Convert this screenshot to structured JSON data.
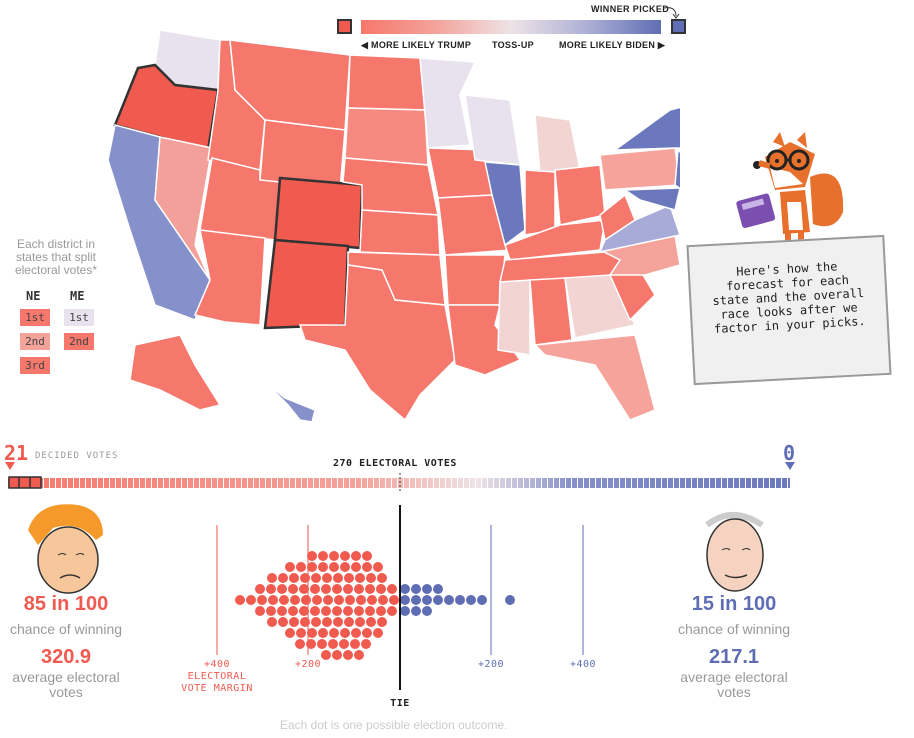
{
  "legend": {
    "trump_label": "◀ MORE LIKELY TRUMP",
    "tossup_label": "TOSS-UP",
    "biden_label": "MORE LIKELY BIDEN ▶",
    "winner_picked": "WINNER PICKED",
    "colors": {
      "trump": "#f05a4f",
      "biden": "#5f6eb4"
    }
  },
  "districts": {
    "note": "Each district in states that split electoral votes*",
    "ne": {
      "label": "NE",
      "items": [
        "1st",
        "2nd",
        "3rd"
      ]
    },
    "me": {
      "label": "ME",
      "items": [
        "1st",
        "2nd"
      ]
    }
  },
  "bubble": {
    "text": "Here's how the forecast for each state and the overall race looks after we factor in your picks."
  },
  "tally": {
    "trump_decided": "21",
    "biden_decided": "0",
    "decided_label": "DECIDED VOTES",
    "threshold_label": "270 ELECTORAL VOTES"
  },
  "trump": {
    "chance": "85 in 100",
    "chance_label": "chance of winning",
    "avg": "320.9",
    "avg_label": "average electoral votes"
  },
  "biden": {
    "chance": "15 in 100",
    "chance_label": "chance of winning",
    "avg": "217.1",
    "avg_label": "average electoral votes"
  },
  "axis": {
    "t400": "+400",
    "t200": "+200",
    "b200": "+200",
    "b400": "+400",
    "margin_label": "ELECTORAL VOTE MARGIN",
    "tie": "TIE"
  },
  "footnote": "Each dot is one possible election outcome."
}
